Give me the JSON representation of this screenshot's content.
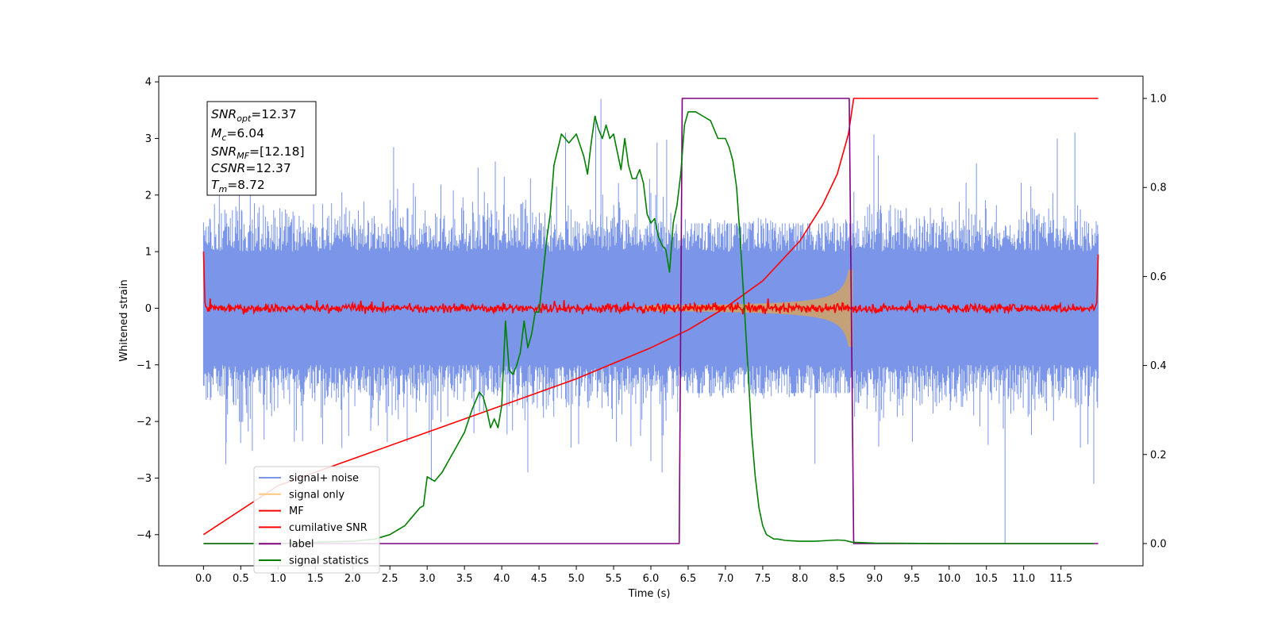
{
  "chart_data": {
    "type": "line",
    "xlabel": "Time (s)",
    "ylabel": "Whitened strain",
    "xlim": [
      -0.6,
      12.6
    ],
    "ylim": [
      -4.55,
      4.1
    ],
    "y2lim": [
      -0.05,
      1.05
    ],
    "x_ticks": [
      "0.0",
      "0.5",
      "1.0",
      "1.5",
      "2.0",
      "2.5",
      "3.0",
      "3.5",
      "4.0",
      "4.5",
      "5.0",
      "5.5",
      "6.0",
      "6.5",
      "7.0",
      "7.5",
      "8.0",
      "8.5",
      "9.0",
      "9.5",
      "10.0",
      "10.5",
      "11.0",
      "11.5"
    ],
    "x_tick_values": [
      0,
      0.5,
      1,
      1.5,
      2,
      2.5,
      3,
      3.5,
      4,
      4.5,
      5,
      5.5,
      6,
      6.5,
      7,
      7.5,
      8,
      8.5,
      9,
      9.5,
      10,
      10.5,
      11,
      11.5
    ],
    "y_ticks": [
      "4",
      "3",
      "2",
      "1",
      "0",
      "−1",
      "−2",
      "−3",
      "−4"
    ],
    "y_tick_values": [
      4,
      3,
      2,
      1,
      0,
      -1,
      -2,
      -3,
      -4
    ],
    "y2_ticks": [
      "1.0",
      "0.8",
      "0.6",
      "0.4",
      "0.2",
      "0.0"
    ],
    "y2_tick_values": [
      1.0,
      0.8,
      0.6,
      0.4,
      0.2,
      0.0
    ],
    "grid": false,
    "legend_position": "lower-left",
    "info_box": {
      "snr_opt": "=12.37",
      "mc": "=6.04",
      "snr_mf": "=[12.18]",
      "csnr": "=12.37",
      "tm": "=8.72"
    },
    "series": [
      {
        "name": "signal+ noise",
        "axis": "left",
        "color": "#7b96e8",
        "style": "noise band, amplitude about ±1.5 with spikes to about ±3, from 0.0 s to 12.0 s"
      },
      {
        "name": "signal only",
        "axis": "left",
        "color": "#ffc77a",
        "style": "chirp envelope growing from about ±0.05 at 5.9 s to about ±0.65 at 8.72 s"
      },
      {
        "name": "MF",
        "axis": "left",
        "color": "#ff0000",
        "style": "noise around 0 with amplitude about 0.15, ends rise to 1.0"
      },
      {
        "name": "cumilative SNR",
        "axis": "right",
        "color": "#ff0000",
        "x": [
          0.0,
          1.0,
          2.0,
          3.0,
          4.0,
          5.0,
          6.0,
          6.5,
          7.0,
          7.5,
          8.0,
          8.3,
          8.5,
          8.65,
          8.72,
          12.0
        ],
        "y": [
          0.02,
          0.13,
          0.19,
          0.25,
          0.31,
          0.37,
          0.44,
          0.48,
          0.53,
          0.59,
          0.68,
          0.76,
          0.83,
          0.92,
          1.0,
          1.0
        ]
      },
      {
        "name": "label",
        "axis": "right",
        "color": "#800080",
        "x": [
          0.0,
          6.38,
          6.42,
          8.66,
          8.72,
          12.0
        ],
        "y": [
          0.0,
          0.0,
          1.0,
          1.0,
          0.0,
          0.0
        ]
      },
      {
        "name": "signal statistics",
        "axis": "right",
        "color": "#008000",
        "x": [
          0.0,
          0.5,
          1.0,
          1.5,
          2.0,
          2.3,
          2.5,
          2.7,
          2.8,
          2.9,
          2.95,
          3.0,
          3.1,
          3.2,
          3.3,
          3.4,
          3.5,
          3.6,
          3.7,
          3.75,
          3.8,
          3.85,
          3.9,
          3.95,
          4.0,
          4.05,
          4.1,
          4.15,
          4.2,
          4.25,
          4.3,
          4.35,
          4.4,
          4.45,
          4.5,
          4.55,
          4.6,
          4.65,
          4.7,
          4.8,
          4.9,
          5.0,
          5.1,
          5.15,
          5.2,
          5.25,
          5.3,
          5.35,
          5.4,
          5.45,
          5.5,
          5.55,
          5.6,
          5.65,
          5.7,
          5.75,
          5.8,
          5.85,
          5.9,
          5.95,
          6.0,
          6.05,
          6.1,
          6.15,
          6.2,
          6.25,
          6.3,
          6.35,
          6.4,
          6.45,
          6.5,
          6.6,
          6.7,
          6.8,
          6.9,
          7.0,
          7.05,
          7.1,
          7.15,
          7.2,
          7.25,
          7.3,
          7.35,
          7.4,
          7.45,
          7.5,
          7.55,
          7.6,
          7.65,
          7.7,
          7.8,
          7.9,
          8.0,
          8.2,
          8.4,
          8.5,
          8.6,
          8.7,
          9.0,
          10.0,
          11.0,
          11.94
        ],
        "y": [
          0.0,
          0.0,
          0.0,
          0.003,
          0.005,
          0.01,
          0.02,
          0.04,
          0.06,
          0.08,
          0.085,
          0.15,
          0.14,
          0.16,
          0.19,
          0.22,
          0.25,
          0.3,
          0.34,
          0.33,
          0.3,
          0.26,
          0.28,
          0.26,
          0.31,
          0.5,
          0.39,
          0.38,
          0.4,
          0.43,
          0.5,
          0.44,
          0.47,
          0.52,
          0.52,
          0.6,
          0.68,
          0.74,
          0.85,
          0.92,
          0.9,
          0.92,
          0.87,
          0.83,
          0.9,
          0.96,
          0.93,
          0.91,
          0.94,
          0.91,
          0.92,
          0.88,
          0.84,
          0.91,
          0.85,
          0.82,
          0.82,
          0.84,
          0.81,
          0.74,
          0.72,
          0.73,
          0.69,
          0.67,
          0.66,
          0.61,
          0.72,
          0.76,
          0.83,
          0.94,
          0.97,
          0.97,
          0.96,
          0.95,
          0.91,
          0.91,
          0.89,
          0.86,
          0.8,
          0.68,
          0.54,
          0.4,
          0.25,
          0.15,
          0.08,
          0.04,
          0.02,
          0.015,
          0.01,
          0.01,
          0.007,
          0.006,
          0.005,
          0.005,
          0.007,
          0.008,
          0.007,
          0.003,
          0.001,
          0.0,
          0.0,
          0.0
        ]
      }
    ]
  }
}
